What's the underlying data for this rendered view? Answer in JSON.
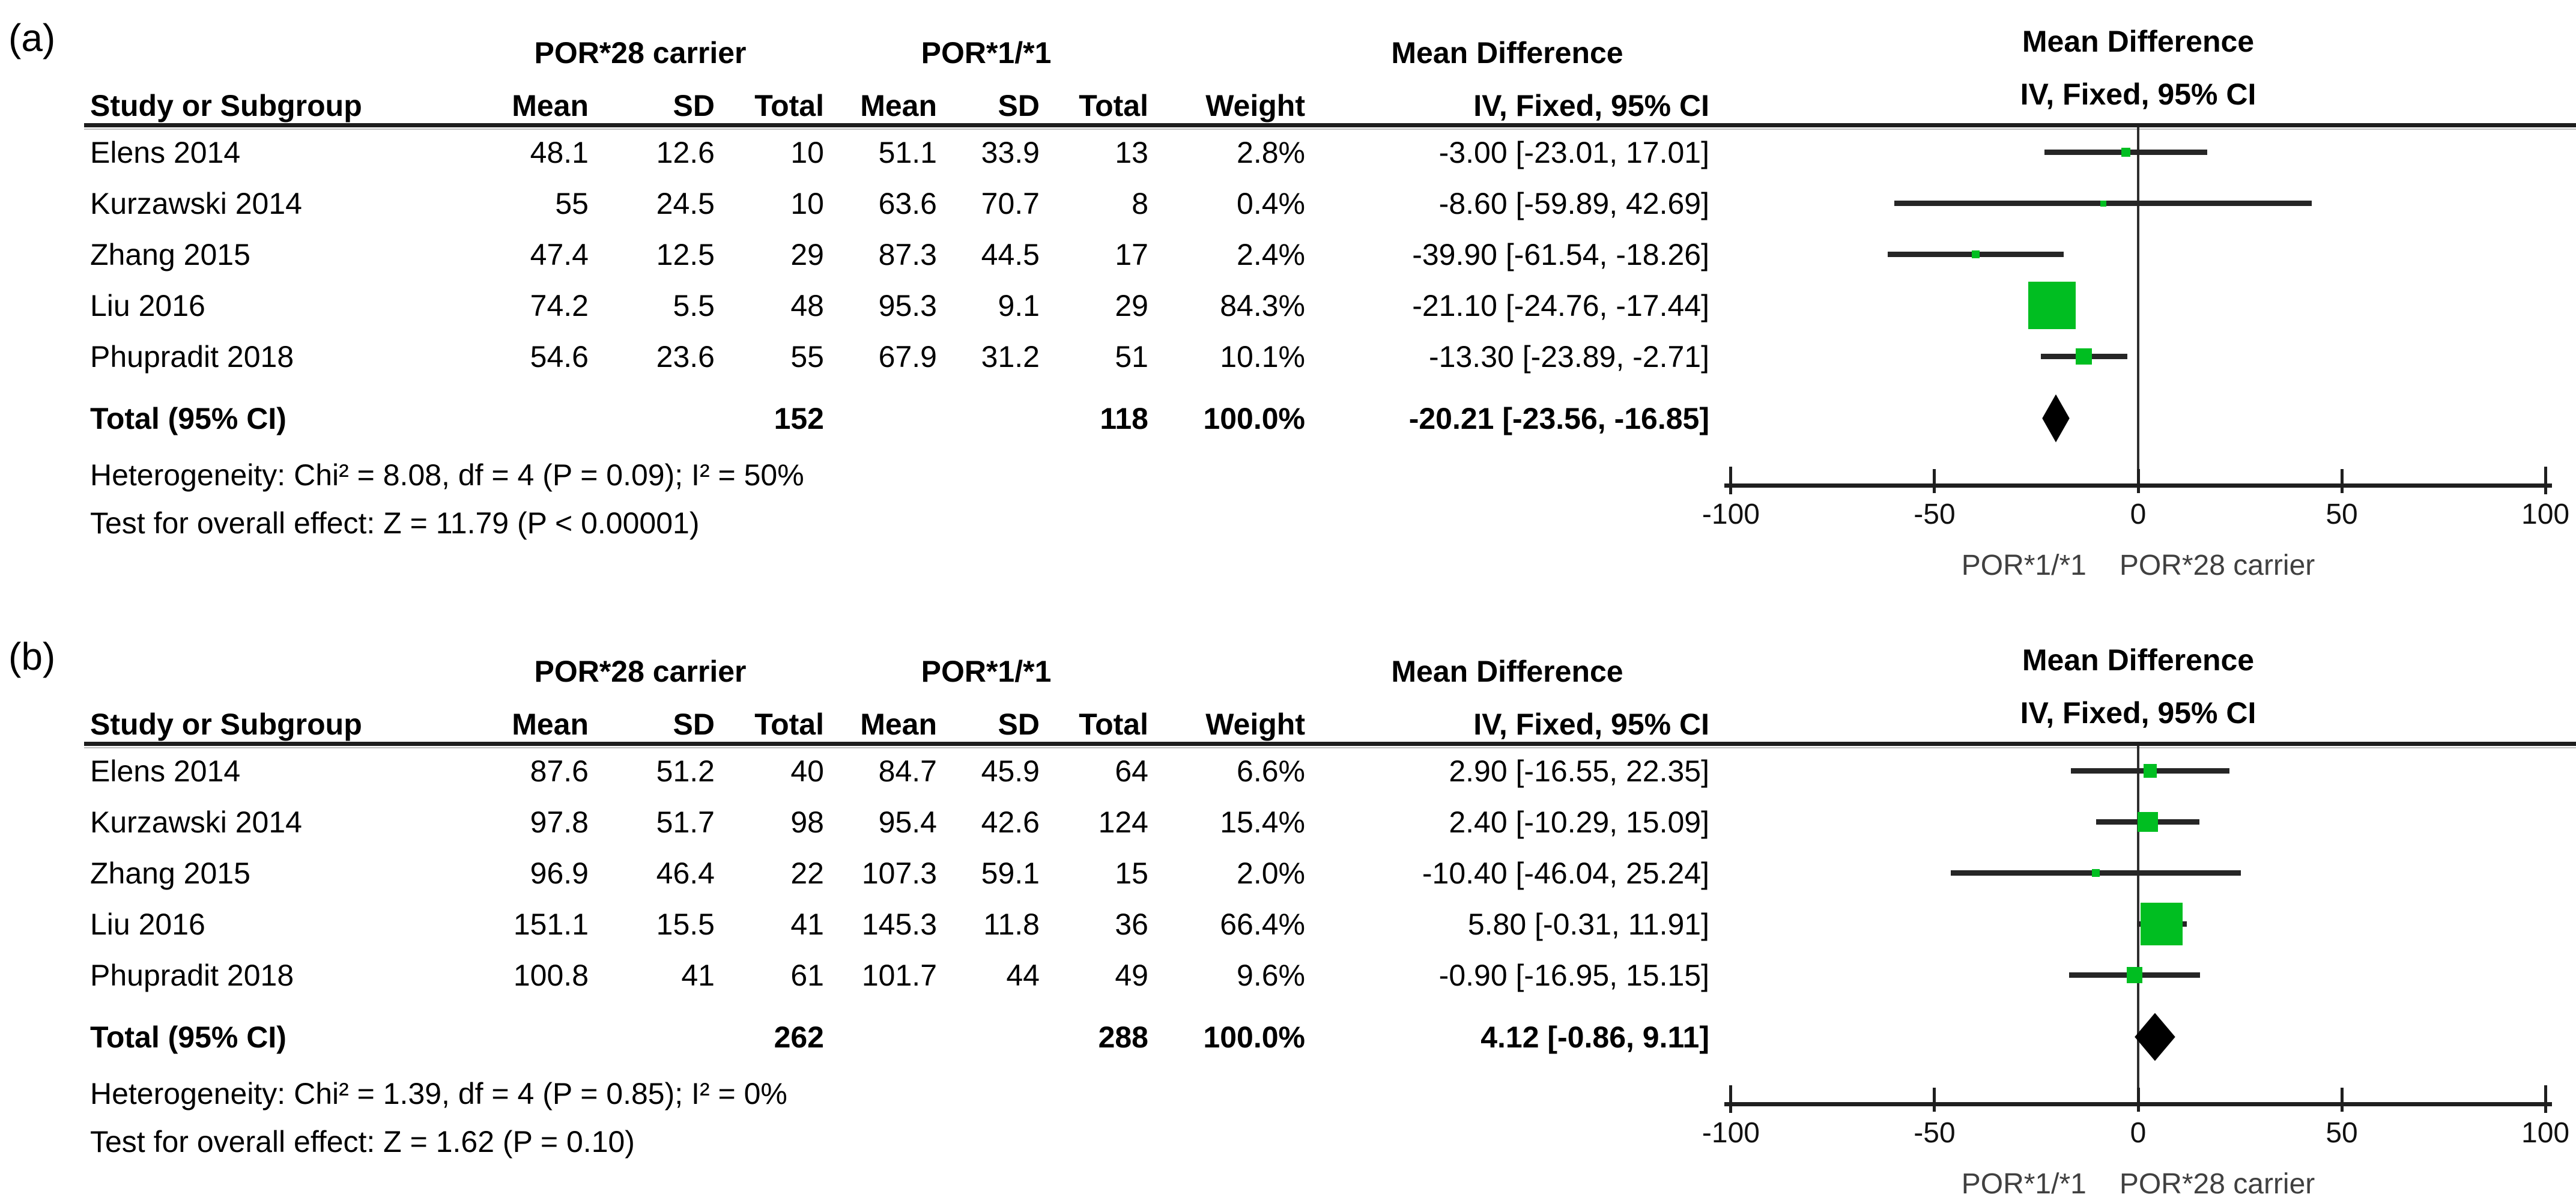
{
  "colors": {
    "marker_green": "#00be21",
    "diamond_black": "#000000",
    "ci_line": "#262626",
    "axis_line": "#1f1f1f",
    "direction_text": "#404040"
  },
  "headers": {
    "group1": "POR*28 carrier",
    "group2": "POR*1/*1",
    "study": "Study or Subgroup",
    "mean": "Mean",
    "sd": "SD",
    "total": "Total",
    "weight": "Weight",
    "effect_line1": "Mean Difference",
    "effect_line2": "IV, Fixed, 95% CI"
  },
  "axis": {
    "tick_labels": [
      "-100",
      "-50",
      "0",
      "50",
      "100"
    ],
    "tick_values": [
      -100,
      -50,
      0,
      50,
      100
    ],
    "range": [
      -102.5,
      102.5
    ],
    "left_label": "POR*1/*1",
    "right_label": "POR*28 carrier"
  },
  "panels": [
    {
      "label": "(a)",
      "studies": [
        {
          "name": "Elens 2014",
          "mean1": "48.1",
          "sd1": "12.6",
          "total1": "10",
          "mean2": "51.1",
          "sd2": "33.9",
          "total2": "13",
          "weight": "2.8%",
          "effect": "-3.00 [-23.01, 17.01]",
          "md": -3.0,
          "lo": -23.01,
          "hi": 17.01,
          "w": 2.8
        },
        {
          "name": "Kurzawski 2014",
          "mean1": "55",
          "sd1": "24.5",
          "total1": "10",
          "mean2": "63.6",
          "sd2": "70.7",
          "total2": "8",
          "weight": "0.4%",
          "effect": "-8.60 [-59.89, 42.69]",
          "md": -8.6,
          "lo": -59.89,
          "hi": 42.69,
          "w": 0.4
        },
        {
          "name": "Zhang 2015",
          "mean1": "47.4",
          "sd1": "12.5",
          "total1": "29",
          "mean2": "87.3",
          "sd2": "44.5",
          "total2": "17",
          "weight": "2.4%",
          "effect": "-39.90 [-61.54, -18.26]",
          "md": -39.9,
          "lo": -61.54,
          "hi": -18.26,
          "w": 2.4
        },
        {
          "name": "Liu 2016",
          "mean1": "74.2",
          "sd1": "5.5",
          "total1": "48",
          "mean2": "95.3",
          "sd2": "9.1",
          "total2": "29",
          "weight": "84.3%",
          "effect": "-21.10 [-24.76, -17.44]",
          "md": -21.1,
          "lo": -24.76,
          "hi": -17.44,
          "w": 84.3
        },
        {
          "name": "Phupradit 2018",
          "mean1": "54.6",
          "sd1": "23.6",
          "total1": "55",
          "mean2": "67.9",
          "sd2": "31.2",
          "total2": "51",
          "weight": "10.1%",
          "effect": "-13.30 [-23.89, -2.71]",
          "md": -13.3,
          "lo": -23.89,
          "hi": -2.71,
          "w": 10.1
        }
      ],
      "total": {
        "label": "Total (95% CI)",
        "total1": "152",
        "total2": "118",
        "weight": "100.0%",
        "effect": "-20.21 [-23.56, -16.85]",
        "md": -20.21,
        "lo": -23.56,
        "hi": -16.85
      },
      "heterogeneity": "Heterogeneity: Chi² = 8.08, df = 4 (P = 0.09); I² = 50%",
      "overall": "Test for overall effect: Z = 11.79 (P < 0.00001)"
    },
    {
      "label": "(b)",
      "studies": [
        {
          "name": "Elens 2014",
          "mean1": "87.6",
          "sd1": "51.2",
          "total1": "40",
          "mean2": "84.7",
          "sd2": "45.9",
          "total2": "64",
          "weight": "6.6%",
          "effect": "2.90 [-16.55, 22.35]",
          "md": 2.9,
          "lo": -16.55,
          "hi": 22.35,
          "w": 6.6
        },
        {
          "name": "Kurzawski 2014",
          "mean1": "97.8",
          "sd1": "51.7",
          "total1": "98",
          "mean2": "95.4",
          "sd2": "42.6",
          "total2": "124",
          "weight": "15.4%",
          "effect": "2.40 [-10.29, 15.09]",
          "md": 2.4,
          "lo": -10.29,
          "hi": 15.09,
          "w": 15.4
        },
        {
          "name": "Zhang 2015",
          "mean1": "96.9",
          "sd1": "46.4",
          "total1": "22",
          "mean2": "107.3",
          "sd2": "59.1",
          "total2": "15",
          "weight": "2.0%",
          "effect": "-10.40 [-46.04, 25.24]",
          "md": -10.4,
          "lo": -46.04,
          "hi": 25.24,
          "w": 2.0
        },
        {
          "name": "Liu 2016",
          "mean1": "151.1",
          "sd1": "15.5",
          "total1": "41",
          "mean2": "145.3",
          "sd2": "11.8",
          "total2": "36",
          "weight": "66.4%",
          "effect": "5.80 [-0.31, 11.91]",
          "md": 5.8,
          "lo": -0.31,
          "hi": 11.91,
          "w": 66.4
        },
        {
          "name": "Phupradit 2018",
          "mean1": "100.8",
          "sd1": "41",
          "total1": "61",
          "mean2": "101.7",
          "sd2": "44",
          "total2": "49",
          "weight": "9.6%",
          "effect": "-0.90 [-16.95, 15.15]",
          "md": -0.9,
          "lo": -16.95,
          "hi": 15.15,
          "w": 9.6
        }
      ],
      "total": {
        "label": "Total (95% CI)",
        "total1": "262",
        "total2": "288",
        "weight": "100.0%",
        "effect": "4.12 [-0.86, 9.11]",
        "md": 4.12,
        "lo": -0.86,
        "hi": 9.11
      },
      "heterogeneity": "Heterogeneity: Chi² = 1.39, df = 4 (P = 0.85); I² = 0%",
      "overall": "Test for overall effect: Z = 1.62 (P = 0.10)"
    }
  ],
  "chart_data": [
    {
      "type": "scatter",
      "subtype": "forest_plot",
      "title": "(a)",
      "effect_measure": "Mean Difference, IV, Fixed, 95% CI",
      "group1": "POR*28 carrier",
      "group2": "POR*1/*1",
      "studies": [
        {
          "study": "Elens 2014",
          "n1": 10,
          "n2": 13,
          "md": -3.0,
          "ci95": [
            -23.01,
            17.01
          ],
          "weight_pct": 2.8
        },
        {
          "study": "Kurzawski 2014",
          "n1": 10,
          "n2": 8,
          "md": -8.6,
          "ci95": [
            -59.89,
            42.69
          ],
          "weight_pct": 0.4
        },
        {
          "study": "Zhang 2015",
          "n1": 29,
          "n2": 17,
          "md": -39.9,
          "ci95": [
            -61.54,
            -18.26
          ],
          "weight_pct": 2.4
        },
        {
          "study": "Liu 2016",
          "n1": 48,
          "n2": 29,
          "md": -21.1,
          "ci95": [
            -24.76,
            -17.44
          ],
          "weight_pct": 84.3
        },
        {
          "study": "Phupradit 2018",
          "n1": 55,
          "n2": 51,
          "md": -13.3,
          "ci95": [
            -23.89,
            -2.71
          ],
          "weight_pct": 10.1
        }
      ],
      "total": {
        "n1": 152,
        "n2": 118,
        "md": -20.21,
        "ci95": [
          -23.56,
          -16.85
        ],
        "weight_pct": 100.0
      },
      "heterogeneity": {
        "chi2": 8.08,
        "df": 4,
        "p": 0.09,
        "i2_pct": 50
      },
      "overall_effect": {
        "z": 11.79,
        "p": "< 0.00001"
      },
      "xlim": [
        -100,
        100
      ],
      "xticks": [
        -100,
        -50,
        0,
        50,
        100
      ],
      "x_direction_labels": {
        "left": "POR*1/*1",
        "right": "POR*28 carrier"
      }
    },
    {
      "type": "scatter",
      "subtype": "forest_plot",
      "title": "(b)",
      "effect_measure": "Mean Difference, IV, Fixed, 95% CI",
      "group1": "POR*28 carrier",
      "group2": "POR*1/*1",
      "studies": [
        {
          "study": "Elens 2014",
          "n1": 40,
          "n2": 64,
          "md": 2.9,
          "ci95": [
            -16.55,
            22.35
          ],
          "weight_pct": 6.6
        },
        {
          "study": "Kurzawski 2014",
          "n1": 98,
          "n2": 124,
          "md": 2.4,
          "ci95": [
            -10.29,
            15.09
          ],
          "weight_pct": 15.4
        },
        {
          "study": "Zhang 2015",
          "n1": 22,
          "n2": 15,
          "md": -10.4,
          "ci95": [
            -46.04,
            25.24
          ],
          "weight_pct": 2.0
        },
        {
          "study": "Liu 2016",
          "n1": 41,
          "n2": 36,
          "md": 5.8,
          "ci95": [
            -0.31,
            11.91
          ],
          "weight_pct": 66.4
        },
        {
          "study": "Phupradit 2018",
          "n1": 61,
          "n2": 49,
          "md": -0.9,
          "ci95": [
            -16.95,
            15.15
          ],
          "weight_pct": 9.6
        }
      ],
      "total": {
        "n1": 262,
        "n2": 288,
        "md": 4.12,
        "ci95": [
          -0.86,
          9.11
        ],
        "weight_pct": 100.0
      },
      "heterogeneity": {
        "chi2": 1.39,
        "df": 4,
        "p": 0.85,
        "i2_pct": 0
      },
      "overall_effect": {
        "z": 1.62,
        "p": "= 0.10"
      },
      "xlim": [
        -100,
        100
      ],
      "xticks": [
        -100,
        -50,
        0,
        50,
        100
      ],
      "x_direction_labels": {
        "left": "POR*1/*1",
        "right": "POR*28 carrier"
      }
    }
  ]
}
